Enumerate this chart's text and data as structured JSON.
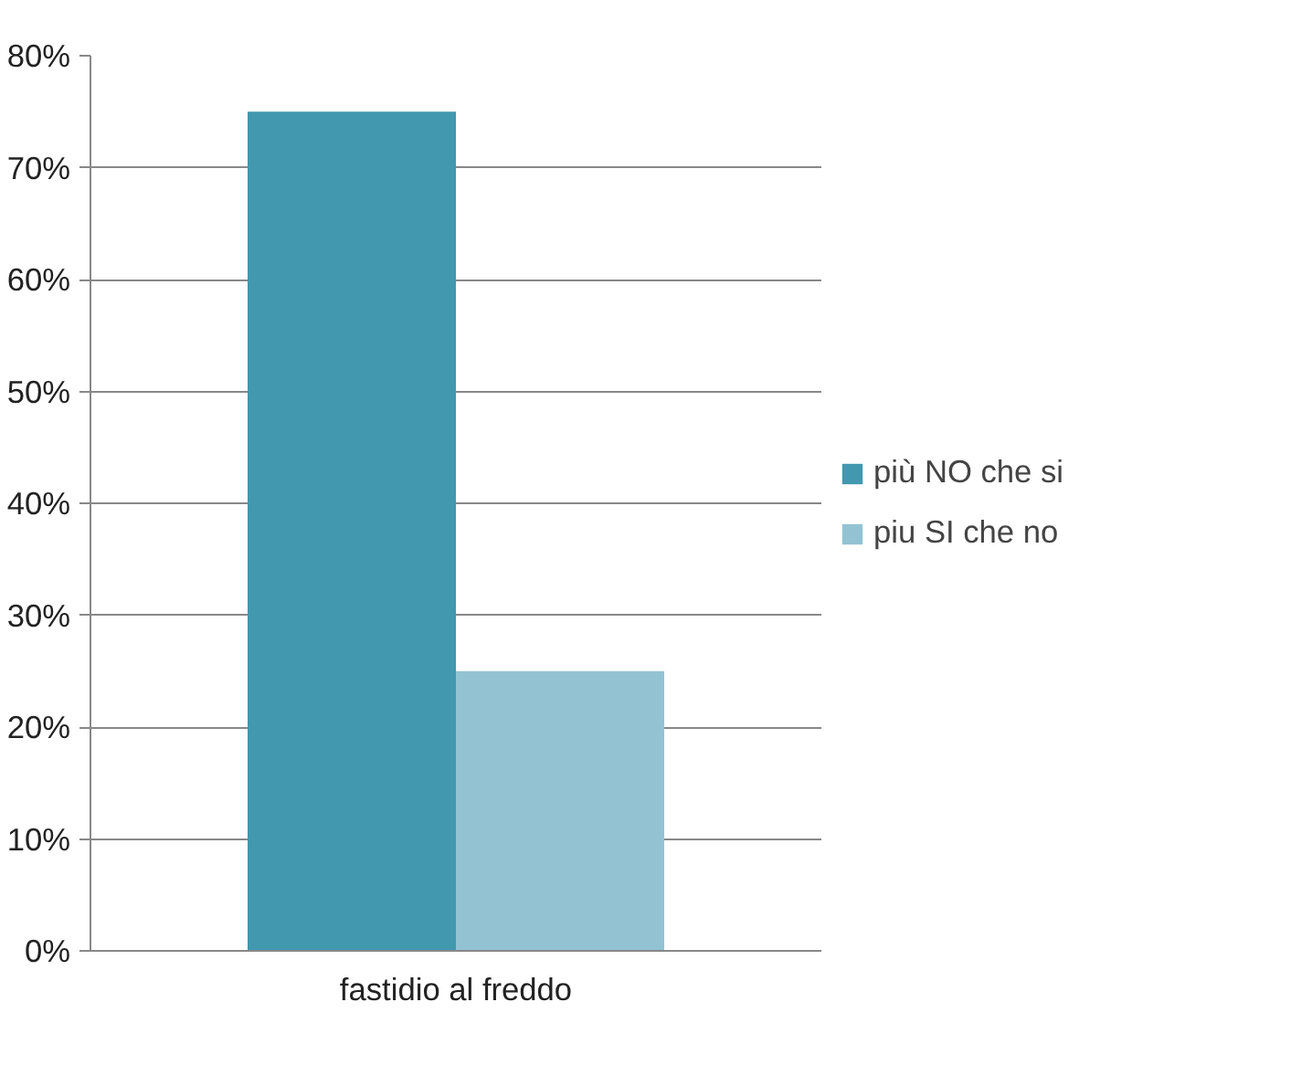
{
  "chart_data": {
    "type": "bar",
    "categories": [
      "fastidio al freddo"
    ],
    "series": [
      {
        "name": "più NO che si",
        "color": "#4198af",
        "values": [
          75
        ]
      },
      {
        "name": "piu SI che no",
        "color": "#93c3d3",
        "values": [
          25
        ]
      }
    ],
    "ylim": [
      0,
      80
    ],
    "yticks": [
      {
        "value": 0,
        "label": "0%"
      },
      {
        "value": 10,
        "label": "10%"
      },
      {
        "value": 20,
        "label": "20%"
      },
      {
        "value": 30,
        "label": "30%"
      },
      {
        "value": 40,
        "label": "40%"
      },
      {
        "value": 50,
        "label": "50%"
      },
      {
        "value": 60,
        "label": "60%"
      },
      {
        "value": 70,
        "label": "70%"
      },
      {
        "value": 80,
        "label": "80%"
      }
    ],
    "grid": "y",
    "legend": "right"
  }
}
